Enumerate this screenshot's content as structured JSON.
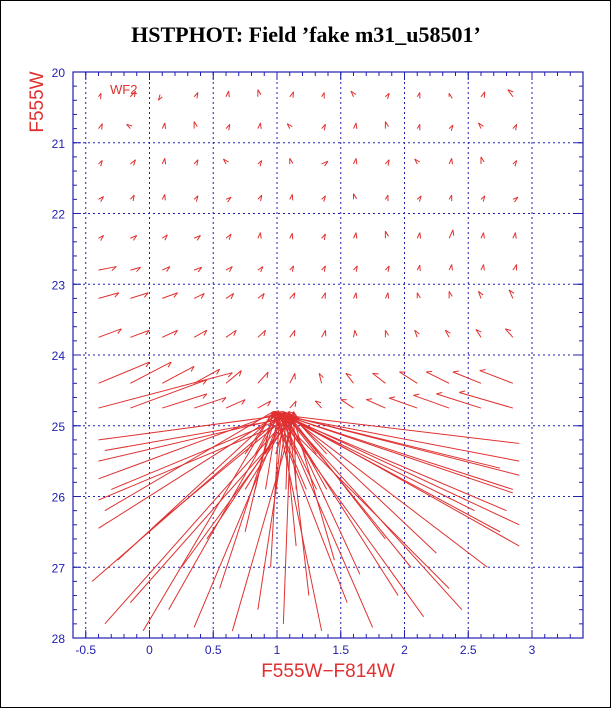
{
  "chart_data": {
    "type": "scatter",
    "title": "HSTPHOT: Field ’fake m31_u58501’",
    "xlabel": "F555W−F814W",
    "ylabel": "F555W",
    "chip_label": "WF2",
    "xlim": [
      -0.6,
      3.4
    ],
    "ylim": [
      28,
      20
    ],
    "y_inverted": true,
    "grid": true,
    "xticks": [
      "-0.5",
      "0",
      "0.5",
      "1",
      "1.5",
      "2",
      "2.5",
      "3"
    ],
    "yticks": [
      "20",
      "21",
      "22",
      "23",
      "24",
      "25",
      "26",
      "27",
      "28"
    ],
    "colors": {
      "axis": "#2020b0",
      "grid": "#2020b0",
      "arrows": "#e03030",
      "title": "#000000"
    },
    "description_of_marks": "Vectors from input (tail) to recovered (head) color-magnitude positions of artificial stars",
    "rows": [
      {
        "y": 20.35,
        "x": [
          -0.4,
          -0.15,
          0.1,
          0.35,
          0.6,
          0.85,
          1.1,
          1.35,
          1.6,
          1.85,
          2.1,
          2.35,
          2.6,
          2.85
        ],
        "dx": [
          0.02,
          0.04,
          -0.03,
          0.03,
          0.02,
          0.0,
          0.03,
          0.02,
          -0.02,
          0.03,
          0.02,
          0.0,
          0.03,
          -0.04
        ],
        "dy": [
          -0.05,
          -0.08,
          0.05,
          -0.06,
          -0.08,
          -0.1,
          -0.07,
          -0.06,
          -0.08,
          -0.05,
          -0.06,
          -0.05,
          -0.07,
          -0.1
        ]
      },
      {
        "y": 20.8,
        "x": [
          -0.4,
          -0.15,
          0.1,
          0.35,
          0.6,
          0.85,
          1.1,
          1.35,
          1.6,
          1.85,
          2.1,
          2.35,
          2.6,
          2.85
        ],
        "dx": [
          0.03,
          -0.03,
          0.02,
          0.0,
          0.03,
          0.02,
          -0.02,
          0.03,
          0.02,
          0.0,
          0.02,
          0.03,
          -0.02,
          0.03
        ],
        "dy": [
          -0.07,
          -0.06,
          -0.08,
          -0.1,
          -0.06,
          -0.08,
          -0.07,
          -0.06,
          -0.08,
          -0.1,
          -0.06,
          -0.05,
          -0.08,
          -0.06
        ]
      },
      {
        "y": 21.3,
        "x": [
          -0.4,
          -0.15,
          0.1,
          0.35,
          0.6,
          0.85,
          1.1,
          1.35,
          1.6,
          1.85,
          2.1,
          2.35,
          2.6,
          2.85
        ],
        "dx": [
          0.03,
          0.04,
          0.02,
          0.03,
          -0.02,
          0.03,
          0.0,
          0.05,
          0.02,
          0.03,
          -0.02,
          0.02,
          0.0,
          0.03
        ],
        "dy": [
          -0.05,
          -0.06,
          -0.08,
          -0.06,
          -0.07,
          -0.05,
          -0.08,
          -0.04,
          -0.08,
          -0.06,
          -0.07,
          -0.08,
          -0.1,
          -0.05
        ]
      },
      {
        "y": 21.8,
        "x": [
          -0.4,
          -0.15,
          0.1,
          0.35,
          0.6,
          0.85,
          1.1,
          1.35,
          1.6,
          1.85,
          2.1,
          2.35,
          2.6,
          2.85
        ],
        "dx": [
          0.04,
          0.03,
          0.02,
          0.03,
          0.04,
          0.03,
          0.02,
          0.03,
          0.0,
          0.02,
          0.03,
          0.02,
          0.03,
          0.04
        ],
        "dy": [
          -0.04,
          -0.06,
          -0.07,
          -0.05,
          -0.03,
          -0.06,
          -0.07,
          -0.05,
          -0.08,
          -0.06,
          -0.05,
          -0.06,
          -0.05,
          -0.03
        ]
      },
      {
        "y": 22.35,
        "x": [
          -0.4,
          -0.15,
          0.1,
          0.35,
          0.6,
          0.85,
          1.1,
          1.35,
          1.6,
          1.85,
          2.1,
          2.35,
          2.6,
          2.85
        ],
        "dx": [
          0.04,
          0.05,
          0.04,
          0.05,
          0.04,
          0.02,
          0.02,
          0.03,
          0.02,
          0.0,
          0.02,
          0.03,
          0.02,
          0.02
        ],
        "dy": [
          -0.04,
          -0.04,
          -0.05,
          -0.04,
          -0.06,
          -0.08,
          -0.07,
          -0.06,
          -0.08,
          -0.1,
          -0.08,
          -0.12,
          -0.08,
          -0.08
        ]
      },
      {
        "y": 22.8,
        "x": [
          -0.4,
          -0.15,
          0.1,
          0.35,
          0.6,
          0.85,
          1.1,
          1.35,
          1.6,
          1.85,
          2.1,
          2.35,
          2.6,
          2.85
        ],
        "dx": [
          0.14,
          0.08,
          0.06,
          0.06,
          0.05,
          0.04,
          0.03,
          0.03,
          0.03,
          0.03,
          0.02,
          0.02,
          0.02,
          0.03
        ],
        "dy": [
          -0.05,
          -0.04,
          -0.05,
          -0.04,
          -0.05,
          -0.05,
          -0.06,
          -0.06,
          -0.06,
          -0.06,
          -0.07,
          -0.08,
          -0.08,
          -0.08
        ]
      },
      {
        "y": 23.2,
        "x": [
          -0.4,
          -0.15,
          0.1,
          0.35,
          0.6,
          0.85,
          1.1,
          1.35,
          1.6,
          1.85,
          2.1,
          2.35,
          2.6,
          2.85
        ],
        "dx": [
          0.16,
          0.14,
          0.12,
          0.08,
          0.06,
          0.05,
          0.04,
          0.03,
          0.02,
          0.02,
          0.0,
          0.0,
          -0.02,
          -0.03
        ],
        "dy": [
          -0.08,
          -0.08,
          -0.08,
          -0.07,
          -0.07,
          -0.07,
          -0.08,
          -0.08,
          -0.08,
          -0.08,
          -0.08,
          -0.1,
          -0.1,
          -0.12
        ]
      },
      {
        "y": 23.75,
        "x": [
          -0.4,
          -0.15,
          0.1,
          0.35,
          0.6,
          0.85,
          1.1,
          1.35,
          1.6,
          1.85,
          2.1,
          2.35,
          2.6,
          2.85
        ],
        "dx": [
          0.18,
          0.15,
          0.12,
          0.1,
          0.08,
          0.06,
          0.04,
          0.03,
          0.01,
          0.0,
          -0.02,
          -0.03,
          -0.04,
          -0.06
        ],
        "dy": [
          -0.12,
          -0.1,
          -0.1,
          -0.1,
          -0.1,
          -0.1,
          -0.1,
          -0.1,
          -0.1,
          -0.1,
          -0.1,
          -0.1,
          -0.11,
          -0.12
        ]
      },
      {
        "y": 24.4,
        "x": [
          -0.4,
          -0.15,
          0.1,
          0.35,
          0.6,
          0.85,
          1.1,
          1.35,
          1.6,
          1.85,
          2.1,
          2.35,
          2.6,
          2.85
        ],
        "dx": [
          0.4,
          0.32,
          0.25,
          0.2,
          0.12,
          0.08,
          0.04,
          -0.02,
          -0.06,
          -0.1,
          -0.14,
          -0.18,
          -0.22,
          -0.26
        ],
        "dy": [
          -0.3,
          -0.3,
          -0.24,
          -0.2,
          -0.18,
          -0.16,
          -0.14,
          -0.14,
          -0.14,
          -0.14,
          -0.16,
          -0.16,
          -0.16,
          -0.18
        ]
      },
      {
        "y": 24.75,
        "x": [
          -0.4,
          -0.15,
          0.1,
          0.35,
          0.6,
          0.85,
          1.1,
          1.35,
          1.6,
          1.85,
          2.1,
          2.35,
          2.6,
          2.85
        ],
        "dx": [
          1.05,
          0.6,
          0.35,
          0.25,
          0.15,
          0.1,
          0.05,
          -0.05,
          -0.1,
          -0.15,
          -0.22,
          -0.28,
          -0.35,
          -0.42
        ],
        "dy": [
          -0.5,
          -0.4,
          -0.2,
          -0.15,
          -0.12,
          -0.1,
          -0.1,
          -0.1,
          -0.12,
          -0.12,
          -0.14,
          -0.18,
          -0.2,
          -0.22
        ]
      }
    ],
    "convergence": {
      "x": 1.05,
      "y": 24.85
    },
    "bottom_sources": {
      "x": [
        -0.45,
        -0.35,
        -0.25,
        -0.15,
        -0.05,
        0.05,
        0.15,
        0.25,
        0.35,
        0.45,
        0.55,
        0.65,
        0.75,
        0.85,
        0.95,
        1.05,
        1.15,
        1.25,
        1.35,
        1.45,
        1.55,
        1.65,
        1.75,
        1.85,
        1.95,
        2.05,
        2.15,
        2.25,
        2.35,
        2.45,
        2.55,
        2.65,
        2.75,
        2.85
      ],
      "y": [
        27.2,
        27.8,
        26.9,
        27.5,
        27.9,
        26.4,
        27.6,
        27.0,
        27.85,
        26.6,
        27.3,
        27.9,
        26.5,
        27.6,
        27.0,
        27.8,
        26.7,
        27.4,
        27.9,
        26.9,
        27.5,
        27.1,
        27.85,
        26.6,
        27.4,
        27.0,
        27.7,
        26.8,
        27.3,
        27.6,
        26.2,
        27.0,
        26.5,
        25.9
      ]
    },
    "left_sources": {
      "x": [
        -0.4,
        -0.4,
        -0.4,
        -0.4,
        -0.35,
        -0.3,
        -0.4,
        -0.35
      ],
      "y": [
        25.2,
        25.5,
        25.75,
        26.05,
        26.2,
        25.9,
        26.45,
        25.35
      ]
    },
    "right_sources": {
      "x": [
        2.9,
        2.9,
        2.9,
        2.85,
        2.8,
        2.9,
        2.75,
        2.9
      ],
      "y": [
        25.25,
        25.5,
        25.7,
        25.95,
        26.2,
        26.4,
        25.6,
        26.7
      ]
    }
  }
}
